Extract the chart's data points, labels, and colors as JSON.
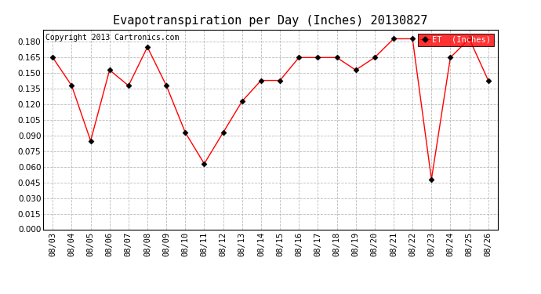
{
  "title": "Evapotranspiration per Day (Inches) 20130827",
  "copyright": "Copyright 2013 Cartronics.com",
  "dates": [
    "08/03",
    "08/04",
    "08/05",
    "08/06",
    "08/07",
    "08/08",
    "08/09",
    "08/10",
    "08/11",
    "08/12",
    "08/13",
    "08/14",
    "08/15",
    "08/16",
    "08/17",
    "08/18",
    "08/19",
    "08/20",
    "08/21",
    "08/22",
    "08/23",
    "08/24",
    "08/25",
    "08/26"
  ],
  "values": [
    0.165,
    0.138,
    0.085,
    0.153,
    0.138,
    0.175,
    0.138,
    0.093,
    0.063,
    0.093,
    0.123,
    0.143,
    0.143,
    0.165,
    0.165,
    0.165,
    0.153,
    0.165,
    0.183,
    0.183,
    0.048,
    0.165,
    0.183,
    0.143
  ],
  "ylim": [
    0.0,
    0.192
  ],
  "yticks": [
    0.0,
    0.015,
    0.03,
    0.045,
    0.06,
    0.075,
    0.09,
    0.105,
    0.12,
    0.135,
    0.15,
    0.165,
    0.18
  ],
  "line_color": "red",
  "marker_color": "black",
  "background_color": "#ffffff",
  "grid_color": "#aaaaaa",
  "legend_bg": "red",
  "legend_text_color": "white",
  "copyright_color": "black",
  "title_fontsize": 11,
  "tick_fontsize": 7.5,
  "copyright_fontsize": 7
}
